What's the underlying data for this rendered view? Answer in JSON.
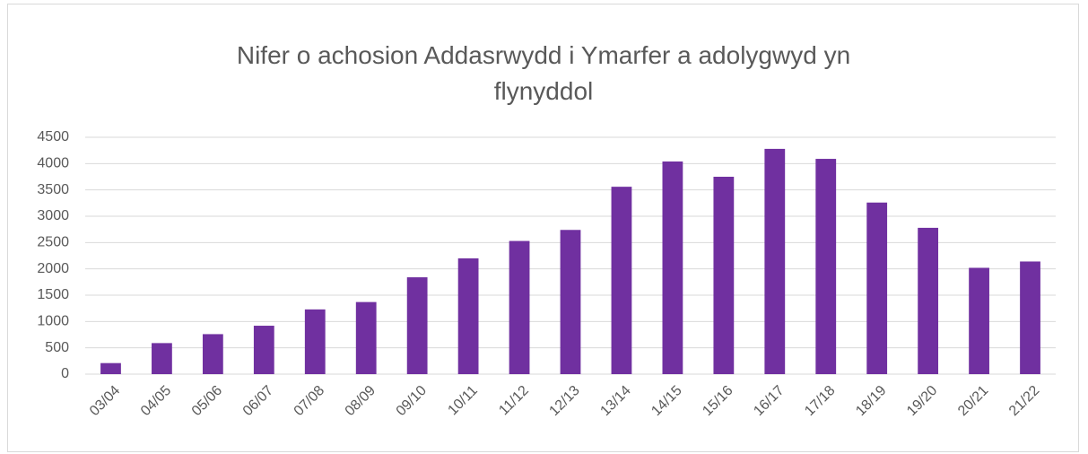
{
  "chart_data": {
    "type": "bar",
    "title": "Nifer o achosion Addasrwydd i Ymarfer a adolygwyd yn flynyddol",
    "categories": [
      "03/04",
      "04/05",
      "05/06",
      "06/07",
      "07/08",
      "08/09",
      "09/10",
      "10/11",
      "11/12",
      "12/13",
      "13/14",
      "14/15",
      "15/16",
      "16/17",
      "17/18",
      "18/19",
      "19/20",
      "20/21",
      "21/22"
    ],
    "values": [
      210,
      590,
      760,
      920,
      1230,
      1370,
      1840,
      2200,
      2530,
      2740,
      3560,
      4040,
      3750,
      4280,
      4090,
      3260,
      2780,
      2020,
      2140
    ],
    "color": "#7030a0",
    "ylim": [
      0,
      4500
    ],
    "yticks": [
      0,
      500,
      1000,
      1500,
      2000,
      2500,
      3000,
      3500,
      4000,
      4500
    ],
    "grid": true
  }
}
